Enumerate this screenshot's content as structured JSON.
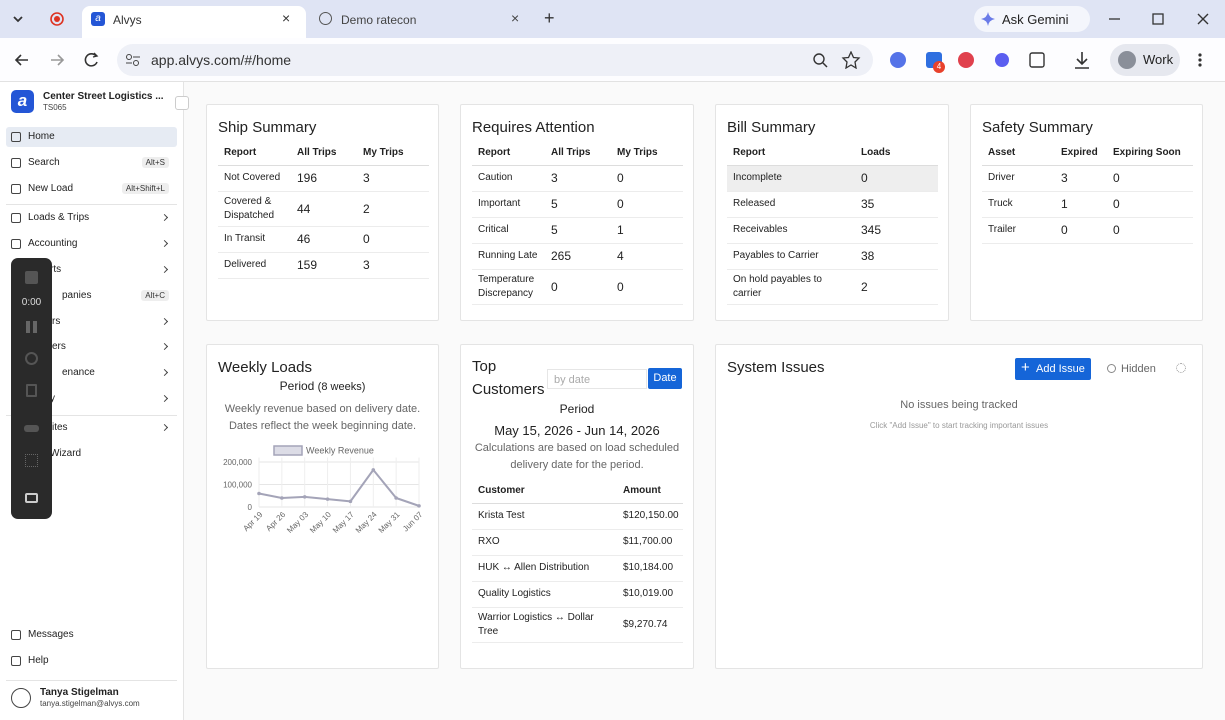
{
  "browser": {
    "tabs": [
      {
        "title": "Alvys"
      },
      {
        "title": "Demo ratecon"
      }
    ],
    "url": "app.alvys.com/#/home",
    "ask_gemini": "Ask Gemini",
    "extension_badge": "4",
    "profile": "Work"
  },
  "sidebar": {
    "org_name": "Center Street Logistics ...",
    "org_code": "TS065",
    "nav": [
      {
        "label": "Home"
      },
      {
        "label": "Search",
        "shortcut": "Alt+S"
      },
      {
        "label": "New Load",
        "shortcut": "Alt+Shift+L"
      },
      {
        "label": "Loads & Trips",
        "expandable": true
      },
      {
        "label": "Accounting",
        "expandable": true
      },
      {
        "label": "rts",
        "expandable": true
      },
      {
        "label": "panies",
        "shortcut": "Alt+C"
      },
      {
        "label": "rs",
        "expandable": true
      },
      {
        "label": "ers",
        "expandable": true
      },
      {
        "label": "enance",
        "expandable": true
      },
      {
        "label": "y",
        "expandable": true
      },
      {
        "label": "ites",
        "expandable": true
      },
      {
        "label": "Wizard"
      }
    ],
    "footer": [
      {
        "label": "Messages"
      },
      {
        "label": "Help"
      }
    ],
    "user": {
      "name": "Tanya Stigelman",
      "email": "tanya.stigelman@alvys.com"
    }
  },
  "recorder": {
    "time": "0:00"
  },
  "ship_summary": {
    "title": "Ship Summary",
    "columns": [
      "Report",
      "All Trips",
      "My Trips"
    ],
    "rows": [
      [
        "Not Covered",
        196,
        3
      ],
      [
        "Covered & Dispatched",
        44,
        2
      ],
      [
        "In Transit",
        46,
        0
      ],
      [
        "Delivered",
        159,
        3
      ]
    ]
  },
  "requires_attention": {
    "title": "Requires Attention",
    "columns": [
      "Report",
      "All Trips",
      "My Trips"
    ],
    "rows": [
      [
        "Caution",
        3,
        0
      ],
      [
        "Important",
        5,
        0
      ],
      [
        "Critical",
        5,
        1
      ],
      [
        "Running Late",
        265,
        4
      ],
      [
        "Temperature Discrepancy",
        0,
        0
      ]
    ]
  },
  "bill_summary": {
    "title": "Bill Summary",
    "columns": [
      "Report",
      "Loads"
    ],
    "rows": [
      [
        "Incomplete",
        0
      ],
      [
        "Released",
        35
      ],
      [
        "Receivables",
        345
      ],
      [
        "Payables to Carrier",
        38
      ],
      [
        "On hold payables to carrier",
        2
      ]
    ]
  },
  "safety_summary": {
    "title": "Safety Summary",
    "columns": [
      "Asset",
      "Expired",
      "Expiring Soon"
    ],
    "rows": [
      [
        "Driver",
        3,
        0
      ],
      [
        "Truck",
        1,
        0
      ],
      [
        "Trailer",
        0,
        0
      ]
    ]
  },
  "weekly_loads": {
    "title": "Weekly Loads",
    "period": "Period",
    "period_note": "(8 weeks)",
    "description": "Weekly revenue based on delivery date. Dates reflect the week beginning date.",
    "chart": {
      "type": "line",
      "categories": [
        "Apr 19",
        "Apr 26",
        "May 03",
        "May 10",
        "May 17",
        "May 24",
        "May 31",
        "Jun 07"
      ],
      "series": [
        {
          "name": "Weekly Revenue",
          "color": "#a4a4b8",
          "values": [
            60000,
            40000,
            45000,
            35000,
            25000,
            165000,
            40000,
            5000
          ]
        }
      ],
      "ylim": [
        0,
        220000
      ],
      "yticks": [
        0,
        {
          "value": 100000,
          "label": "100,000"
        },
        {
          "value": 200000,
          "label": "200,000"
        }
      ],
      "grid": true
    }
  },
  "top_customers": {
    "title": "Top Customers",
    "filter_placeholder": "by date",
    "filter_button": "Date",
    "period": "Period",
    "date_range": "May 15, 2026 - Jun 14, 2026",
    "description": "Calculations are based on load scheduled delivery date for the period.",
    "columns": [
      "Customer",
      "Amount"
    ],
    "rows": [
      [
        "Krista Test",
        "$120,150.00"
      ],
      [
        "RXO",
        "$11,700.00"
      ],
      [
        "HUK ↔ Allen Distribution",
        "$10,184.00"
      ],
      [
        "Quality Logistics",
        "$10,019.00"
      ],
      [
        "Warrior Logistics ↔ Dollar Tree",
        "$9,270.74"
      ]
    ]
  },
  "system_issues": {
    "title": "System Issues",
    "add_button": "Add Issue",
    "hidden_toggle": "Hidden",
    "empty_title": "No issues being tracked",
    "empty_hint": "Click \"Add Issue\" to start tracking important issues"
  }
}
